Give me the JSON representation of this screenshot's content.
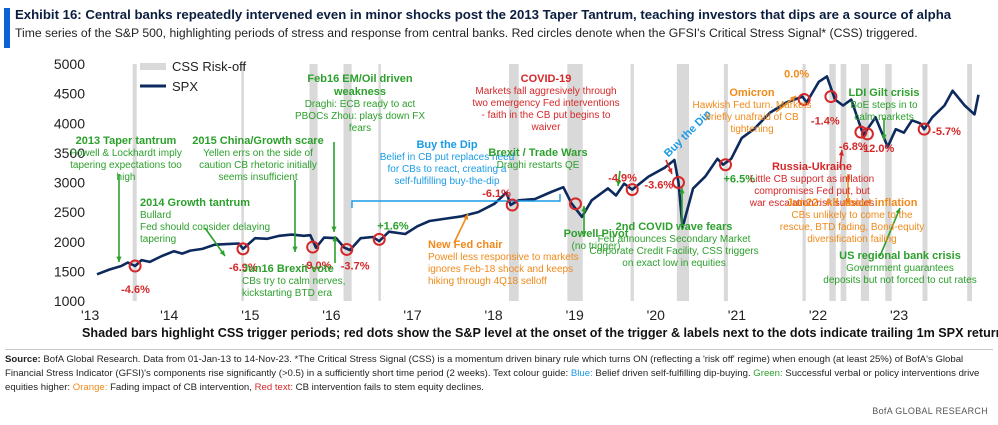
{
  "title": "Exhibit 16: Central banks repeatedly intervened even in minor shocks post the 2013 Taper Tantrum, teaching investors that dips are a source of alpha",
  "subtitle": "Time series of the S&P 500, highlighting periods of stress and response from central banks. Red circles denote when the GFSI's Critical Stress Signal* (CSS) triggered.",
  "caption": "Shaded bars highlight CSS trigger periods; red dots show the S&P level at the onset of the trigger & labels next to the dots indicate trailing 1m SPX returns",
  "footnote": {
    "source_label": "Source:",
    "text_main": " BofA Global Research. Data from 01-Jan-13 to 14-Nov-23. *The Critical Stress Signal (CSS) is a momentum driven binary rule which turns ON (reflecting a 'risk off' regime) when enough (at least 25%) of BofA's Global Financial Stress Indicator (GFSI)'s components rise significantly (>0.5) in a sufficiently short time period (2 weeks). Text colour guide: ",
    "blue_text": "Blue:",
    "blue_desc": " Belief driven self-fulfilling dip-buying. ",
    "green_text": "Green:",
    "green_desc": " Successful verbal or policy interventions drive equities higher: ",
    "orange_text": "Orange:",
    "orange_desc": " Fading impact of CB intervention, ",
    "red_text": "Red text:",
    "red_desc": " CB intervention fails to stem equity declines."
  },
  "credit": "BofA GLOBAL RESEARCH",
  "colors": {
    "line": "#0d2a5e",
    "shade": "#d9d9d9",
    "dot": "#d62728",
    "blue": "#1a9be6",
    "green": "#2ca02c",
    "orange": "#f08a1a",
    "red": "#d62728",
    "accent": "#0a62d6"
  },
  "chart_data": {
    "type": "line",
    "title": "",
    "xlabel": "",
    "ylabel": "",
    "ylim": [
      1000,
      5000
    ],
    "xlim": [
      2013.0,
      2023.95
    ],
    "yticks": [
      "1000",
      "1500",
      "2000",
      "2500",
      "3000",
      "3500",
      "4000",
      "4500",
      "5000"
    ],
    "xticks": [
      "'13",
      "'14",
      "'15",
      "'16",
      "'17",
      "'18",
      "'19",
      "'20",
      "'21",
      "'22",
      "'23"
    ],
    "legend": [
      {
        "label": "CSS Risk-off",
        "kind": "shade"
      },
      {
        "label": "SPX",
        "kind": "line"
      }
    ],
    "legend_position": "top-left",
    "series": [
      {
        "name": "SPX",
        "x": [
          2013.0,
          2013.15,
          2013.3,
          2013.38,
          2013.47,
          2013.55,
          2013.65,
          2013.8,
          2013.95,
          2014.05,
          2014.15,
          2014.3,
          2014.45,
          2014.6,
          2014.75,
          2014.8,
          2014.95,
          2015.1,
          2015.25,
          2015.4,
          2015.55,
          2015.63,
          2015.7,
          2015.8,
          2015.95,
          2016.05,
          2016.12,
          2016.25,
          2016.4,
          2016.48,
          2016.6,
          2016.8,
          2016.95,
          2017.1,
          2017.3,
          2017.5,
          2017.7,
          2017.9,
          2018.05,
          2018.1,
          2018.2,
          2018.4,
          2018.6,
          2018.75,
          2018.85,
          2018.98,
          2019.1,
          2019.3,
          2019.4,
          2019.5,
          2019.6,
          2019.8,
          2020.0,
          2020.12,
          2020.17,
          2020.22,
          2020.35,
          2020.5,
          2020.65,
          2020.72,
          2020.82,
          2020.95,
          2021.1,
          2021.3,
          2021.5,
          2021.7,
          2021.75,
          2021.9,
          2022.0,
          2022.1,
          2022.2,
          2022.3,
          2022.45,
          2022.6,
          2022.75,
          2022.85,
          2022.95,
          2023.05,
          2023.15,
          2023.2,
          2023.3,
          2023.45,
          2023.55,
          2023.7,
          2023.82,
          2023.87
        ],
        "values": [
          1450,
          1530,
          1590,
          1650,
          1590,
          1690,
          1660,
          1760,
          1840,
          1800,
          1850,
          1880,
          1950,
          1960,
          1970,
          1880,
          2060,
          2050,
          2100,
          2120,
          2100,
          2110,
          1900,
          2070,
          2060,
          1900,
          1860,
          2060,
          2080,
          2010,
          2170,
          2130,
          2260,
          2350,
          2390,
          2430,
          2500,
          2640,
          2830,
          2620,
          2700,
          2720,
          2840,
          2920,
          2650,
          2420,
          2700,
          2900,
          2780,
          2980,
          2880,
          3100,
          3250,
          3380,
          3000,
          2240,
          2900,
          3100,
          3400,
          3300,
          3400,
          3750,
          3900,
          4180,
          4350,
          4450,
          4350,
          4700,
          4790,
          4400,
          4300,
          4400,
          3800,
          4100,
          3600,
          3900,
          3840,
          4050,
          4000,
          3900,
          4100,
          4300,
          4550,
          4300,
          4150,
          4480
        ]
      }
    ],
    "risk_off_periods": [
      [
        2013.44,
        2013.49
      ],
      [
        2014.78,
        2014.81
      ],
      [
        2015.62,
        2015.72
      ],
      [
        2016.04,
        2016.14
      ],
      [
        2016.47,
        2016.5
      ],
      [
        2018.08,
        2018.2
      ],
      [
        2018.8,
        2018.99
      ],
      [
        2019.58,
        2019.62
      ],
      [
        2020.15,
        2020.3
      ],
      [
        2020.73,
        2020.78
      ],
      [
        2021.7,
        2021.74
      ],
      [
        2022.03,
        2022.11
      ],
      [
        2022.17,
        2022.24
      ],
      [
        2022.42,
        2022.52
      ],
      [
        2022.72,
        2022.8
      ],
      [
        2023.18,
        2023.24
      ],
      [
        2023.73,
        2023.79
      ]
    ],
    "trigger_points": [
      {
        "x": 2013.47,
        "y": 1590,
        "label": "-4.6%"
      },
      {
        "x": 2014.8,
        "y": 1880,
        "label": "-6.9%"
      },
      {
        "x": 2015.66,
        "y": 1910,
        "label": "-9.0%"
      },
      {
        "x": 2016.08,
        "y": 1870,
        "label": "-3.7%"
      },
      {
        "x": 2016.48,
        "y": 2040,
        "label": "+1.6%"
      },
      {
        "x": 2018.12,
        "y": 2620,
        "label": "-6.1%"
      },
      {
        "x": 2018.9,
        "y": 2640,
        "label": ""
      },
      {
        "x": 2019.6,
        "y": 2880,
        "label": "-4.9%"
      },
      {
        "x": 2020.17,
        "y": 3000,
        "label": "-3.6%"
      },
      {
        "x": 2020.75,
        "y": 3300,
        "label": "+6.5%"
      },
      {
        "x": 2021.72,
        "y": 4400,
        "label": "0.0%"
      },
      {
        "x": 2022.05,
        "y": 4450,
        "label": "-1.4%"
      },
      {
        "x": 2022.42,
        "y": 3850,
        "label": "-6.8%"
      },
      {
        "x": 2022.5,
        "y": 3820,
        "label": "-12.0%"
      },
      {
        "x": 2023.2,
        "y": 3900,
        "label": "-5.7%"
      }
    ],
    "annotations": [
      {
        "heading": "2013 Taper tantrum",
        "body": [
          "Powell & Lockhardt imply",
          "tapering expectations too",
          "high"
        ],
        "color": "green"
      },
      {
        "heading": "2014 Growth tantrum",
        "body": [
          "Bullard",
          "Fed should consider delaying",
          "tapering"
        ],
        "color": "green"
      },
      {
        "heading": "2015 China/Growth scare",
        "body": [
          "Yellen errs on the side of",
          "caution CB rhetoric initially",
          "seems insufficient"
        ],
        "color": "green"
      },
      {
        "heading": "Feb16 EM/Oil driven",
        "heading2": "weakness",
        "body": [
          "Draghi: ECB ready to act",
          "PBOCs Zhou: plays down FX",
          "fears"
        ],
        "color": "green"
      },
      {
        "heading": "Jun16 Brexit vote",
        "body": [
          "CBs try to calm nerves,",
          "kickstarting BTD era"
        ],
        "color": "green"
      },
      {
        "heading": "Buy the Dip",
        "body": [
          "Belief in CB put replaces need",
          "for CBs to react, creating a",
          "self-fulfilling buy-the-dip"
        ],
        "color": "blue"
      },
      {
        "heading": "New Fed chair",
        "body": [
          "Powell less responsive to markets",
          "ignores Feb-18 shock and keeps",
          "hiking through 4Q18 selloff"
        ],
        "color": "orange"
      },
      {
        "heading": "Powell Pivot",
        "body": [
          "(no trigger)"
        ],
        "color": "green"
      },
      {
        "heading": "Brexit / Trade Wars",
        "body": [
          "Draghi restarts QE"
        ],
        "color": "green"
      },
      {
        "heading": "COVID-19",
        "body": [
          "Markets fall aggresively through",
          "two emergency Fed interventions",
          "- faith in the CB put begins to",
          "waiver"
        ],
        "color": "red"
      },
      {
        "heading": "2nd COVID wave fears",
        "body": [
          "Fed announces Secondary Market",
          "Corporate Credit Facility, CSS triggers",
          "on exact low in equities"
        ],
        "color": "green"
      },
      {
        "heading": "Buy the Dip",
        "body": [],
        "color": "blue"
      },
      {
        "heading": "Omicron",
        "body": [
          "Hawkish Fed turn. Markets",
          "briefly unafraid of CB",
          "tightening"
        ],
        "color": "orange"
      },
      {
        "heading": "LDI Gilt crisis",
        "body": [
          "BoE steps in to",
          "calm markets"
        ],
        "color": "green"
      },
      {
        "heading": "Russia-Ukraine",
        "body": [
          "Little CB support as inflation",
          "compromises Fed put, but",
          "war escalation risk subsides"
        ],
        "color": "red"
      },
      {
        "heading": "Jun22: All about inflation",
        "body": [
          "CBs unlikely to come to the",
          "rescue, BTD fading, Bond-equity",
          "diversification failing"
        ],
        "color": "orange"
      },
      {
        "heading": "US regional bank crisis",
        "body": [
          "Government guarantees",
          "deposits but not forced to cut rates"
        ],
        "color": "green"
      }
    ]
  }
}
